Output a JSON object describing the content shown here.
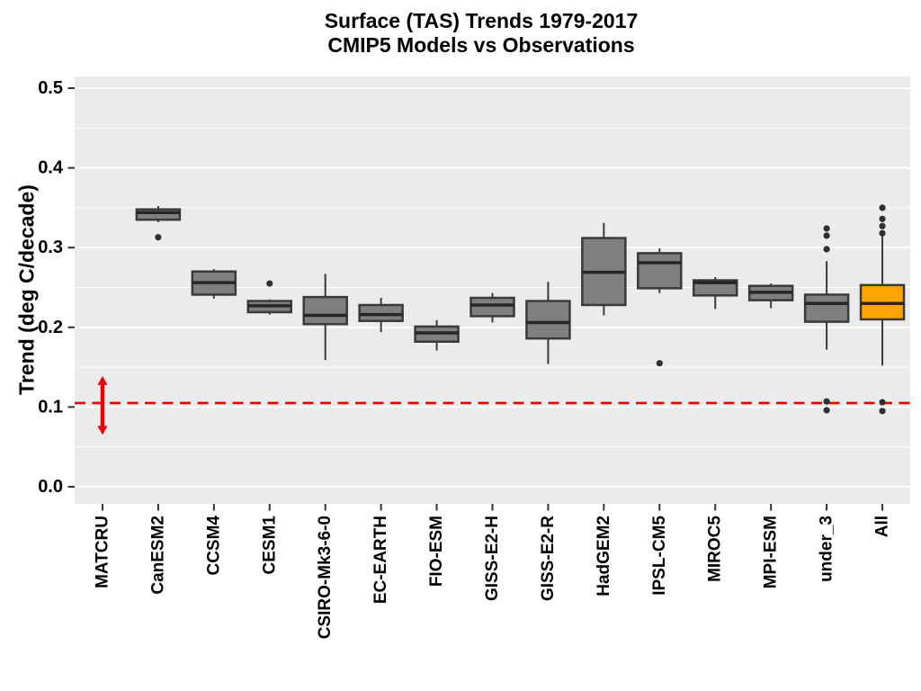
{
  "header": {
    "title_line1": "Surface (TAS) Trends 1979-2017",
    "title_line2": "CMIP5 Models vs Observations"
  },
  "chart_data": {
    "type": "boxplot",
    "title": "Surface (TAS) Trends 1979-2017",
    "subtitle": "CMIP5 Models vs Observations",
    "ylabel": "Trend (deg C/decade)",
    "ylim": [
      -0.02,
      0.515
    ],
    "yticks": [
      0.0,
      0.1,
      0.2,
      0.3,
      0.4,
      0.5
    ],
    "ytick_labels": [
      "0.0",
      "0.1",
      "0.2",
      "0.3",
      "0.4",
      "0.5"
    ],
    "yticks_minor": [
      0.05,
      0.15,
      0.25,
      0.35,
      0.45
    ],
    "grid": true,
    "panel_background": "#EBEBEB",
    "gridline_color": "#FFFFFF",
    "box_fill_default": "#7F7F7F",
    "box_fill_highlight": "#FFA500",
    "box_border_color": "#3A3A3A",
    "median_color": "#262626",
    "outlier_color": "#303030",
    "reference_line": {
      "value": 0.105,
      "color": "#F00000",
      "style": "dashed"
    },
    "observation_arrow": {
      "category": "MATCRU",
      "low": 0.065,
      "high": 0.139,
      "color": "#F00000"
    },
    "categories": [
      "MATCRU",
      "CanESM2",
      "CCSM4",
      "CESM1",
      "CSIRO-Mk3-6-0",
      "EC-EARTH",
      "FIO-ESM",
      "GISS-E2-H",
      "GISS-E2-R",
      "HadGEM2",
      "IPSL-CM5",
      "MIROC5",
      "MPI-ESM",
      "under_3",
      "All"
    ],
    "series": [
      {
        "name": "MATCRU",
        "stats": null,
        "outliers": [],
        "fill": "none"
      },
      {
        "name": "CanESM2",
        "stats": [
          0.332,
          0.335,
          0.344,
          0.348,
          0.352
        ],
        "outliers": [
          0.313
        ],
        "fill": "default"
      },
      {
        "name": "CCSM4",
        "stats": [
          0.236,
          0.241,
          0.256,
          0.27,
          0.273
        ],
        "outliers": [],
        "fill": "default"
      },
      {
        "name": "CESM1",
        "stats": [
          0.216,
          0.219,
          0.227,
          0.233,
          0.235
        ],
        "outliers": [
          0.255
        ],
        "fill": "default"
      },
      {
        "name": "CSIRO-Mk3-6-0",
        "stats": [
          0.159,
          0.204,
          0.215,
          0.238,
          0.267
        ],
        "outliers": [],
        "fill": "default"
      },
      {
        "name": "EC-EARTH",
        "stats": [
          0.194,
          0.208,
          0.216,
          0.228,
          0.237
        ],
        "outliers": [],
        "fill": "default"
      },
      {
        "name": "FIO-ESM",
        "stats": [
          0.171,
          0.182,
          0.193,
          0.201,
          0.209
        ],
        "outliers": [],
        "fill": "default"
      },
      {
        "name": "GISS-E2-H",
        "stats": [
          0.206,
          0.214,
          0.228,
          0.237,
          0.243
        ],
        "outliers": [],
        "fill": "default"
      },
      {
        "name": "GISS-E2-R",
        "stats": [
          0.154,
          0.186,
          0.206,
          0.233,
          0.257
        ],
        "outliers": [],
        "fill": "default"
      },
      {
        "name": "HadGEM2",
        "stats": [
          0.215,
          0.228,
          0.269,
          0.312,
          0.331
        ],
        "outliers": [],
        "fill": "default"
      },
      {
        "name": "IPSL-CM5",
        "stats": [
          0.243,
          0.249,
          0.281,
          0.293,
          0.299
        ],
        "outliers": [
          0.155
        ],
        "fill": "default"
      },
      {
        "name": "MIROC5",
        "stats": [
          0.223,
          0.24,
          0.256,
          0.259,
          0.263
        ],
        "outliers": [],
        "fill": "default"
      },
      {
        "name": "MPI-ESM",
        "stats": [
          0.224,
          0.234,
          0.244,
          0.252,
          0.255
        ],
        "outliers": [],
        "fill": "default"
      },
      {
        "name": "under_3",
        "stats": [
          0.172,
          0.207,
          0.23,
          0.241,
          0.283
        ],
        "outliers": [
          0.324,
          0.315,
          0.298,
          0.107,
          0.096
        ],
        "fill": "default"
      },
      {
        "name": "All",
        "stats": [
          0.152,
          0.21,
          0.23,
          0.253,
          0.315
        ],
        "outliers": [
          0.35,
          0.336,
          0.327,
          0.318,
          0.106,
          0.095
        ],
        "fill": "highlight"
      }
    ]
  }
}
